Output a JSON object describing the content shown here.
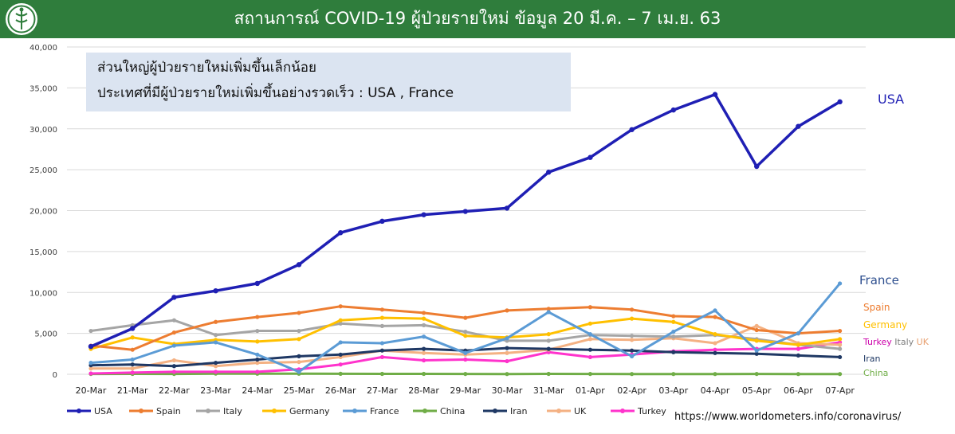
{
  "header": {
    "title": "สถานการณ์ COVID-19 ผู้ป่วยรายใหม่ ข้อมูล 20 มี.ค. – 7 เม.ย. 63"
  },
  "info_box": {
    "line1": "ส่วนใหญ่ผู้ป่วยรายใหม่เพิ่มขึ้นเล็กน้อย",
    "line2": "ประเทศที่มีผู้ป่วยรายใหม่เพิ่มขึ้นอย่างรวดเร็ว : USA , France"
  },
  "source": "https://www.worldometers.info/coronavirus/",
  "right_labels": {
    "usa": "USA",
    "france": "France",
    "spain": "Spain",
    "germany": "Germany",
    "turkey": "Turkey",
    "italy": "Italy",
    "uk": "UK",
    "iran": "Iran",
    "china": "China"
  },
  "chart_data": {
    "type": "line",
    "title": "",
    "xlabel": "",
    "ylabel": "",
    "ylim": [
      0,
      40000
    ],
    "y_ticks": [
      "0",
      "5,000",
      "10,000",
      "15,000",
      "20,000",
      "25,000",
      "30,000",
      "35,000",
      "40,000"
    ],
    "grid": true,
    "legend": "bottom",
    "categories": [
      "20-Mar",
      "21-Mar",
      "22-Mar",
      "23-Mar",
      "24-Mar",
      "25-Mar",
      "26-Mar",
      "27-Mar",
      "28-Mar",
      "29-Mar",
      "30-Mar",
      "31-Mar",
      "01-Apr",
      "02-Apr",
      "03-Apr",
      "04-Apr",
      "05-Apr",
      "06-Apr",
      "07-Apr"
    ],
    "series": [
      {
        "name": "USA",
        "color": "#1f1fb4",
        "values": [
          3400,
          5600,
          9400,
          10200,
          11100,
          13400,
          17300,
          18700,
          19500,
          19900,
          20300,
          24700,
          26500,
          29900,
          32300,
          34200,
          25400,
          30300,
          33300
        ]
      },
      {
        "name": "Spain",
        "color": "#ed7d31",
        "values": [
          3500,
          3000,
          5100,
          6400,
          7000,
          7500,
          8300,
          7900,
          7500,
          6900,
          7800,
          8000,
          8200,
          7900,
          7100,
          7000,
          5400,
          5000,
          5300
        ]
      },
      {
        "name": "Italy",
        "color": "#a5a5a5",
        "values": [
          5300,
          6000,
          6600,
          4800,
          5300,
          5300,
          6200,
          5900,
          6000,
          5200,
          4100,
          4100,
          4800,
          4700,
          4600,
          4800,
          4300,
          3600,
          3100
        ]
      },
      {
        "name": "Germany",
        "color": "#ffc000",
        "values": [
          3100,
          4500,
          3700,
          4200,
          4000,
          4300,
          6600,
          6900,
          6800,
          4700,
          4500,
          4900,
          6200,
          6800,
          6400,
          4900,
          4100,
          3600,
          4300
        ]
      },
      {
        "name": "France",
        "color": "#5b9bd5",
        "values": [
          1400,
          1800,
          3500,
          3900,
          2400,
          300,
          3900,
          3800,
          4600,
          2600,
          4400,
          7600,
          4900,
          2200,
          5200,
          7800,
          2900,
          5000,
          11100
        ]
      },
      {
        "name": "China",
        "color": "#70ad47",
        "values": [
          40,
          50,
          40,
          80,
          70,
          70,
          60,
          50,
          50,
          40,
          30,
          50,
          40,
          30,
          30,
          30,
          40,
          30,
          30
        ]
      },
      {
        "name": "Iran",
        "color": "#1f3864",
        "values": [
          1100,
          1200,
          1000,
          1400,
          1800,
          2200,
          2400,
          2900,
          3100,
          2900,
          3200,
          3100,
          3000,
          2900,
          2700,
          2600,
          2500,
          2300,
          2100
        ]
      },
      {
        "name": "UK",
        "color": "#f4b183",
        "values": [
          700,
          700,
          1700,
          1000,
          1400,
          1500,
          2100,
          2900,
          2600,
          2400,
          2600,
          3000,
          4300,
          4200,
          4400,
          3800,
          5900,
          3800,
          3600
        ]
      },
      {
        "name": "Turkey",
        "color": "#ff33cc",
        "values": [
          100,
          200,
          300,
          300,
          300,
          600,
          1200,
          2100,
          1700,
          1800,
          1600,
          2700,
          2100,
          2400,
          2800,
          3000,
          3100,
          3100,
          3900
        ]
      }
    ]
  }
}
